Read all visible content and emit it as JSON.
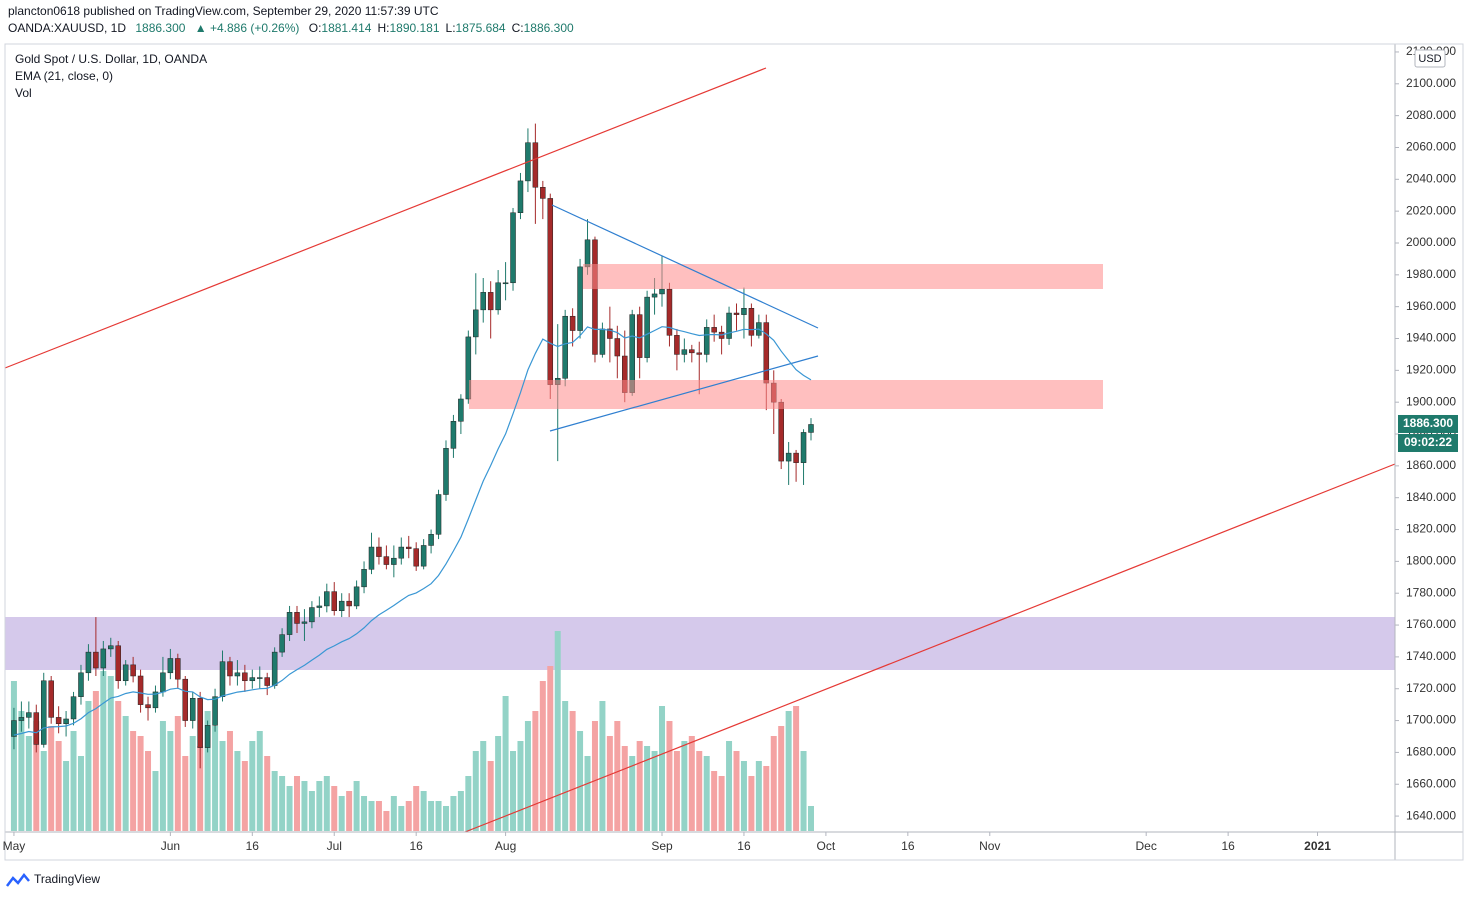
{
  "header": {
    "published": "plancton0618 published on TradingView.com, September 29, 2020 11:57:39 UTC",
    "symbol": "OANDA:XAUUSD, 1D",
    "last": "1886.300",
    "change": "▲ +4.886 (+0.26%)",
    "ohlc": [
      {
        "key": "O:",
        "value": "1881.414"
      },
      {
        "key": "H:",
        "value": "1890.181"
      },
      {
        "key": "L:",
        "value": "1875.684"
      },
      {
        "key": "C:",
        "value": "1886.300"
      }
    ]
  },
  "legend": [
    "Gold Spot / U.S. Dollar, 1D, OANDA",
    "EMA (21, close, 0)",
    "Vol"
  ],
  "footer": "TradingView",
  "chart_data": {
    "type": "candlestick",
    "currency": "USD",
    "up_color": "#1f7a6c",
    "down_color": "#a52a2a",
    "up_volume_color": "#93d3c7",
    "down_volume_color": "#f4a3a3",
    "ema_color": "#3a97d4",
    "open": [
      1690,
      1700,
      1702,
      1705,
      1685,
      1725,
      1702,
      1698,
      1701,
      1715,
      1730,
      1743,
      1733,
      1745,
      1747,
      1725,
      1735,
      1728,
      1710,
      1708,
      1718,
      1730,
      1739,
      1726,
      1700,
      1714,
      1683,
      1697,
      1715,
      1737,
      1728,
      1730,
      1725,
      1727,
      1727,
      1722,
      1743,
      1754,
      1768,
      1761,
      1762,
      1771,
      1772,
      1781,
      1769,
      1775,
      1772,
      1784,
      1795,
      1809,
      1803,
      1798,
      1802,
      1809,
      1808,
      1797,
      1810,
      1817,
      1842,
      1871,
      1888,
      1902,
      1941,
      1958,
      1969,
      1958,
      1975,
      1975,
      2019,
      2039,
      2063,
      2035,
      2028,
      1911,
      1915,
      1954,
      1945,
      1985,
      2002,
      1930,
      1946,
      1940,
      1929,
      1906,
      1955,
      1928,
      1966,
      1968,
      1971,
      1942,
      1930,
      1933,
      1931,
      1930,
      1947,
      1944,
      1940,
      1956,
      1955,
      1959,
      1942,
      1950,
      1912,
      1900,
      1863,
      1868,
      1862,
      1881
    ],
    "high": [
      1708,
      1712,
      1712,
      1710,
      1730,
      1728,
      1709,
      1706,
      1718,
      1735,
      1748,
      1765,
      1750,
      1752,
      1750,
      1738,
      1740,
      1732,
      1715,
      1722,
      1740,
      1745,
      1742,
      1728,
      1718,
      1718,
      1700,
      1720,
      1744,
      1740,
      1738,
      1735,
      1732,
      1734,
      1730,
      1746,
      1758,
      1772,
      1772,
      1770,
      1775,
      1778,
      1786,
      1787,
      1780,
      1780,
      1788,
      1800,
      1818,
      1815,
      1810,
      1810,
      1815,
      1816,
      1812,
      1814,
      1820,
      1845,
      1876,
      1892,
      1905,
      1945,
      1981,
      1978,
      1976,
      1983,
      1988,
      2022,
      2044,
      2072,
      2075,
      2039,
      2031,
      1949,
      1958,
      1959,
      1990,
      2015,
      2004,
      1950,
      1960,
      1948,
      1945,
      1958,
      1960,
      1970,
      1978,
      1992,
      1975,
      1946,
      1940,
      1936,
      1938,
      1952,
      1955,
      1948,
      1960,
      1962,
      1972,
      1962,
      1955,
      1955,
      1920,
      1902,
      1875,
      1870,
      1883,
      1890
    ],
    "low": [
      1682,
      1693,
      1695,
      1680,
      1683,
      1698,
      1692,
      1690,
      1697,
      1710,
      1725,
      1728,
      1728,
      1740,
      1720,
      1722,
      1724,
      1705,
      1700,
      1705,
      1715,
      1726,
      1720,
      1696,
      1695,
      1670,
      1680,
      1693,
      1712,
      1722,
      1722,
      1718,
      1720,
      1720,
      1716,
      1720,
      1740,
      1750,
      1755,
      1750,
      1758,
      1765,
      1768,
      1766,
      1765,
      1765,
      1770,
      1780,
      1792,
      1798,
      1795,
      1790,
      1798,
      1802,
      1794,
      1795,
      1805,
      1814,
      1838,
      1865,
      1880,
      1899,
      1930,
      1950,
      1940,
      1955,
      1964,
      1970,
      2015,
      2032,
      2012,
      2015,
      1902,
      1863,
      1910,
      1935,
      1940,
      1980,
      1925,
      1928,
      1925,
      1915,
      1900,
      1904,
      1915,
      1925,
      1955,
      1960,
      1935,
      1920,
      1925,
      1925,
      1905,
      1925,
      1938,
      1930,
      1936,
      1945,
      1940,
      1935,
      1940,
      1895,
      1880,
      1858,
      1848,
      1850,
      1848,
      1876
    ],
    "close": [
      1700,
      1702,
      1705,
      1685,
      1725,
      1702,
      1698,
      1701,
      1715,
      1730,
      1743,
      1733,
      1745,
      1747,
      1725,
      1735,
      1728,
      1710,
      1708,
      1718,
      1730,
      1739,
      1726,
      1700,
      1714,
      1683,
      1697,
      1715,
      1737,
      1728,
      1730,
      1725,
      1727,
      1727,
      1722,
      1743,
      1754,
      1768,
      1761,
      1762,
      1771,
      1772,
      1781,
      1769,
      1775,
      1772,
      1784,
      1795,
      1809,
      1803,
      1798,
      1802,
      1809,
      1808,
      1797,
      1810,
      1817,
      1842,
      1871,
      1888,
      1902,
      1941,
      1958,
      1969,
      1958,
      1975,
      1975,
      2019,
      2039,
      2063,
      2035,
      2028,
      1911,
      1915,
      1954,
      1945,
      1985,
      2002,
      1930,
      1946,
      1940,
      1929,
      1906,
      1955,
      1928,
      1966,
      1968,
      1971,
      1942,
      1930,
      1933,
      1931,
      1930,
      1947,
      1944,
      1940,
      1956,
      1955,
      1959,
      1942,
      1950,
      1912,
      1900,
      1863,
      1868,
      1862,
      1881,
      1886
    ],
    "ema": [
      1690.9,
      1691.9,
      1693.1,
      1692.4,
      1695.4,
      1696.0,
      1696.2,
      1696.6,
      1698.3,
      1701.2,
      1705.0,
      1707.5,
      1710.9,
      1714.2,
      1715.2,
      1717.0,
      1718.0,
      1717.3,
      1716.5,
      1716.6,
      1717.8,
      1719.7,
      1720.3,
      1718.4,
      1718.0,
      1714.8,
      1713.2,
      1713.4,
      1715.5,
      1716.7,
      1717.9,
      1718.5,
      1719.3,
      1720.0,
      1720.2,
      1722.3,
      1725.2,
      1729.1,
      1732.0,
      1734.7,
      1738.0,
      1741.1,
      1744.7,
      1746.9,
      1749.5,
      1751.5,
      1754.5,
      1758.2,
      1762.8,
      1766.4,
      1769.3,
      1772.3,
      1775.6,
      1778.6,
      1780.2,
      1782.9,
      1786.0,
      1791.1,
      1798.4,
      1806.5,
      1815.2,
      1826.6,
      1838.6,
      1850.4,
      1860.2,
      1870.6,
      1880.1,
      1892.7,
      1906.0,
      1920.3,
      1930.7,
      1939.6,
      1937.0,
      1935.0,
      1936.7,
      1937.5,
      1941.8,
      1947.3,
      1945.7,
      1945.7,
      1945.2,
      1943.7,
      1940.3,
      1941.6,
      1940.4,
      1942.7,
      1945.0,
      1947.4,
      1946.9,
      1945.4,
      1944.3,
      1943.0,
      1941.9,
      1942.3,
      1942.5,
      1942.2,
      1943.5,
      1944.5,
      1945.8,
      1945.5,
      1945.9,
      1942.8,
      1938.9,
      1932.0,
      1926.2,
      1920.4,
      1916.8,
      1914.0
    ],
    "volume": [
      150,
      120,
      95,
      110,
      80,
      105,
      90,
      70,
      100,
      75,
      130,
      140,
      160,
      155,
      130,
      115,
      100,
      95,
      80,
      60,
      110,
      100,
      115,
      75,
      95,
      85,
      120,
      105,
      90,
      100,
      80,
      70,
      90,
      100,
      75,
      60,
      55,
      45,
      55,
      50,
      40,
      50,
      55,
      45,
      35,
      40,
      50,
      35,
      30,
      30,
      20,
      35,
      25,
      30,
      45,
      40,
      30,
      30,
      25,
      35,
      40,
      55,
      80,
      90,
      70,
      95,
      135,
      80,
      90,
      110,
      120,
      150,
      165,
      200,
      130,
      120,
      100,
      75,
      110,
      130,
      95,
      110,
      85,
      75,
      90,
      85,
      80,
      125,
      110,
      80,
      90,
      95,
      80,
      75,
      60,
      55,
      90,
      80,
      70,
      55,
      70,
      65,
      95,
      105,
      120,
      125,
      80,
      25
    ],
    "xlim": [
      -1.2,
      185.4
    ],
    "xticks": [
      {
        "value": 0,
        "label": "May"
      },
      {
        "value": 21,
        "label": "Jun"
      },
      {
        "value": 32,
        "label": "16"
      },
      {
        "value": 43,
        "label": "Jul"
      },
      {
        "value": 54,
        "label": "16"
      },
      {
        "value": 66,
        "label": "Aug"
      },
      {
        "value": 87,
        "label": "Sep"
      },
      {
        "value": 98,
        "label": "16"
      },
      {
        "value": 109,
        "label": "Oct"
      },
      {
        "value": 120,
        "label": "16"
      },
      {
        "value": 131,
        "label": "Nov"
      },
      {
        "value": 152,
        "label": "Dec"
      },
      {
        "value": 163,
        "label": "16"
      },
      {
        "value": 175,
        "label": "2021"
      }
    ],
    "ylim": [
      1630,
      2125
    ],
    "yticks": [
      {
        "value": 1640,
        "label": "1640.000"
      },
      {
        "value": 1660,
        "label": "1660.000"
      },
      {
        "value": 1680,
        "label": "1680.000"
      },
      {
        "value": 1700,
        "label": "1700.000"
      },
      {
        "value": 1720,
        "label": "1720.000"
      },
      {
        "value": 1740,
        "label": "1740.000"
      },
      {
        "value": 1760,
        "label": "1760.000"
      },
      {
        "value": 1780,
        "label": "1780.000"
      },
      {
        "value": 1800,
        "label": "1800.000"
      },
      {
        "value": 1820,
        "label": "1820.000"
      },
      {
        "value": 1840,
        "label": "1840.000"
      },
      {
        "value": 1860,
        "label": "1860.000"
      },
      {
        "value": 1880,
        "label": "1880.000"
      },
      {
        "value": 1900,
        "label": "1900.000"
      },
      {
        "value": 1920,
        "label": "1920.000"
      },
      {
        "value": 1940,
        "label": "1940.000"
      },
      {
        "value": 1960,
        "label": "1960.000"
      },
      {
        "value": 1980,
        "label": "1980.000"
      },
      {
        "value": 2000,
        "label": "2000.000"
      },
      {
        "value": 2020,
        "label": "2020.000"
      },
      {
        "value": 2040,
        "label": "2040.000"
      },
      {
        "value": 2060,
        "label": "2060.000"
      },
      {
        "value": 2080,
        "label": "2080.000"
      },
      {
        "value": 2100,
        "label": "2100.000"
      },
      {
        "value": 2120,
        "label": "2120.000"
      }
    ],
    "last_price": {
      "value": 1886.3,
      "label": "1886.300"
    },
    "countdown": "09:02:22",
    "grid": false
  }
}
